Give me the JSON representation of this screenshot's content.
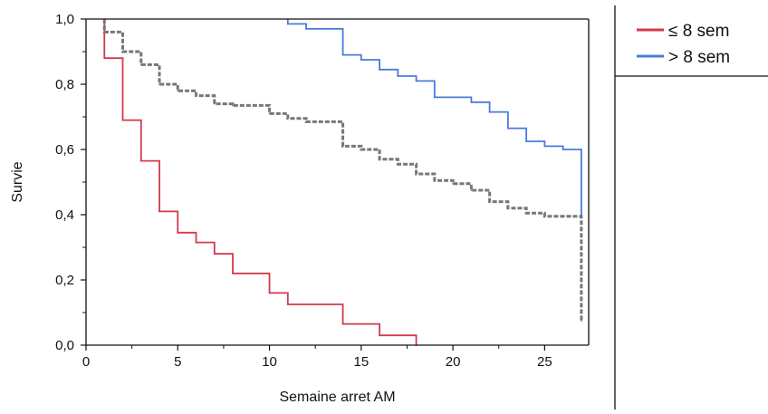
{
  "chart_data": {
    "type": "line",
    "step": true,
    "xlabel": "Semaine arret AM",
    "ylabel": "Survie",
    "xlim": [
      0,
      27.4
    ],
    "ylim": [
      0,
      1.0
    ],
    "x_ticks": [
      0,
      5,
      10,
      15,
      20,
      25
    ],
    "x_tick_labels": [
      "0",
      "5",
      "10",
      "15",
      "20",
      "25"
    ],
    "y_ticks": [
      0,
      0.2,
      0.4,
      0.6,
      0.8,
      1.0
    ],
    "y_tick_labels": [
      "0,0",
      "0,2",
      "0,4",
      "0,6",
      "0,8",
      "1,0"
    ],
    "legend_position": "right",
    "series": [
      {
        "name": "≤ 8 sem",
        "color": "#d23a4e",
        "dash": "solid",
        "x": [
          1,
          2,
          3,
          4,
          5,
          6,
          7,
          8,
          10,
          11,
          14,
          16,
          18
        ],
        "y": [
          0.88,
          0.69,
          0.565,
          0.41,
          0.345,
          0.315,
          0.28,
          0.22,
          0.16,
          0.125,
          0.065,
          0.03,
          0.0
        ]
      },
      {
        "name": "> 8 sem",
        "color": "#4a7bdc",
        "dash": "solid",
        "x": [
          11,
          12,
          14,
          15,
          16,
          17,
          18,
          19,
          21,
          22,
          23,
          24,
          25,
          26,
          27,
          27
        ],
        "y": [
          0.985,
          0.97,
          0.89,
          0.875,
          0.845,
          0.825,
          0.81,
          0.76,
          0.745,
          0.715,
          0.665,
          0.625,
          0.61,
          0.6,
          0.6,
          0.395
        ]
      },
      {
        "color": "#777777",
        "dash": "dashed",
        "x": [
          1,
          2,
          3,
          4,
          5,
          6,
          7,
          8,
          10,
          11,
          12,
          14,
          15,
          16,
          17,
          18,
          19,
          20,
          21,
          22,
          23,
          24,
          25,
          26,
          27,
          27
        ],
        "y": [
          0.96,
          0.9,
          0.86,
          0.8,
          0.78,
          0.765,
          0.74,
          0.735,
          0.71,
          0.695,
          0.685,
          0.61,
          0.6,
          0.57,
          0.555,
          0.525,
          0.505,
          0.495,
          0.475,
          0.44,
          0.42,
          0.405,
          0.395,
          0.395,
          0.395,
          0.075
        ]
      }
    ]
  }
}
